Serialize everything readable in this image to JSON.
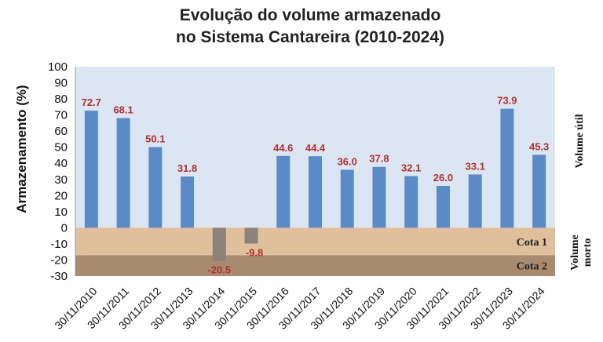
{
  "chart_data": {
    "type": "bar",
    "title": "Evolução do volume armazenado",
    "subtitle": "no Sistema Cantareira (2010-2024)",
    "ylabel": "Armazenamento (%)",
    "ylim": [
      -30,
      100
    ],
    "yticks": [
      100,
      90,
      80,
      70,
      60,
      50,
      40,
      30,
      20,
      10,
      0,
      -10,
      -20,
      -30
    ],
    "categories": [
      "30/11/2010",
      "30/11/2011",
      "30/11/2012",
      "30/11/2013",
      "30/11/2014",
      "30/11/2015",
      "30/11/2016",
      "30/11/2017",
      "30/11/2018",
      "30/11/2019",
      "30/11/2020",
      "30/11/2021",
      "30/11/2022",
      "30/11/2023",
      "30/11/2024"
    ],
    "values": [
      72.7,
      68.1,
      50.1,
      31.8,
      -20.5,
      -9.8,
      44.6,
      44.4,
      36.0,
      37.8,
      32.1,
      26.0,
      33.1,
      73.9,
      45.3
    ],
    "value_labels": [
      "72.7",
      "68.1",
      "50.1",
      "31.8",
      "-20.5",
      "-9.8",
      "44.6",
      "44.4",
      "36.0",
      "37.8",
      "32.1",
      "26.0",
      "33.1",
      "73.9",
      "45.3"
    ],
    "bands": [
      {
        "label": "Cota 1",
        "from": 0,
        "to": -17,
        "color": "#dfbf9c"
      },
      {
        "label": "Cota 2",
        "from": -17,
        "to": -30,
        "color": "#a88b6e"
      }
    ],
    "side_labels": {
      "upper": "Volume útil",
      "lower": "Volume morto"
    },
    "colors": {
      "positive": "#5b8ac6",
      "negative": "#8c8279",
      "label": "#b0312f",
      "background": "#dce6f2"
    },
    "grid": false
  }
}
